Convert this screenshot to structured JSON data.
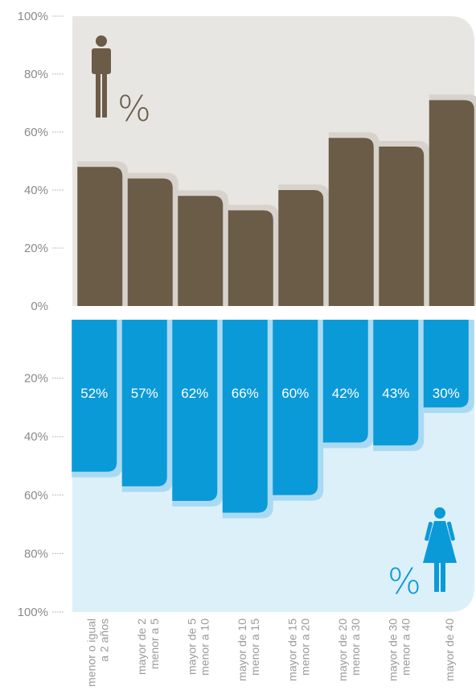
{
  "chart_data": {
    "type": "bar",
    "categories": [
      [
        "menor o igual",
        "a 2 años"
      ],
      [
        "mayor de 2",
        "menor a 5"
      ],
      [
        "mayor de 5",
        "menor a 10"
      ],
      [
        "mayor de 10",
        "menor a 15"
      ],
      [
        "mayor de 15",
        "menor a 20"
      ],
      [
        "mayor de 20",
        "menor a 30"
      ],
      [
        "mayor de 30",
        "menor a 40"
      ],
      [
        "mayor de 40"
      ]
    ],
    "series": [
      {
        "values": [
          48,
          44,
          38,
          33,
          40,
          58,
          55,
          71
        ]
      },
      {
        "values": [
          52,
          57,
          62,
          66,
          60,
          42,
          43,
          30
        ],
        "value_labels": [
          "52%",
          "57%",
          "62%",
          "66%",
          "60%",
          "42%",
          "43%",
          "30%"
        ]
      }
    ],
    "men_axis_ticks": [
      "100%",
      "80%",
      "60%",
      "40%",
      "20%",
      "0%"
    ],
    "women_axis_ticks": [
      "20%",
      "40%",
      "60%",
      "80%",
      "100%"
    ],
    "men_percent_symbol": "%",
    "women_percent_symbol": "%",
    "ylim": [
      0,
      100
    ],
    "colors": {
      "men_bar": "#6b5c48",
      "men_bar_outline": "#d7d3cc",
      "men_panel": "#e8e6e3",
      "women_bar": "#0b9ad8",
      "women_bar_outline": "#aadaf2",
      "women_panel": "#dcf0fa",
      "men_icon": "#6b5c48",
      "women_icon": "#0b9ad8"
    },
    "icons": [
      "man-icon",
      "woman-icon"
    ]
  }
}
